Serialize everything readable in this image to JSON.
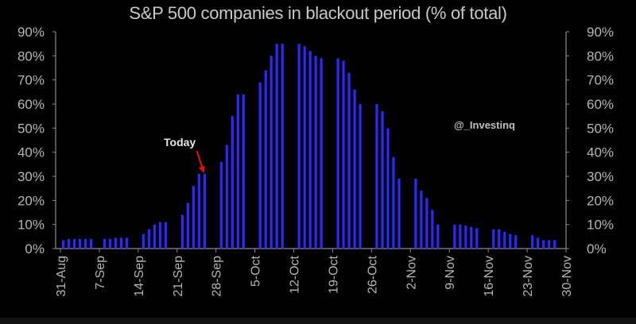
{
  "header": {
    "title": "S&P 500 companies in blackout period (% of total)"
  },
  "annotations": {
    "today_label": "Today",
    "watermark": "@_Investinq"
  },
  "colors": {
    "background": "#000000",
    "bar": "#2a2aff",
    "arrow": "#e01010",
    "axis": "#8a8a8a",
    "text": "#b5b5b5"
  },
  "chart_data": {
    "type": "bar",
    "title": "S&P 500 companies in blackout period (% of total)",
    "xlabel": "",
    "ylabel": "% of total",
    "ylim": [
      0,
      90
    ],
    "y_ticks": [
      "0%",
      "10%",
      "20%",
      "30%",
      "40%",
      "50%",
      "60%",
      "70%",
      "80%",
      "90%"
    ],
    "x_ticks": [
      "31-Aug",
      "7-Sep",
      "14-Sep",
      "21-Sep",
      "28-Sep",
      "5-Oct",
      "12-Oct",
      "19-Oct",
      "26-Oct",
      "2-Nov",
      "9-Nov",
      "16-Nov",
      "23-Nov",
      "30-Nov"
    ],
    "grid": false,
    "dual_y_axis": true,
    "annotation": {
      "text": "Today",
      "points_to_week": "21-Sep",
      "bar_index": 4
    },
    "weeks": [
      {
        "week": "31-Aug",
        "values": [
          3.5,
          4,
          4,
          4,
          4,
          4
        ]
      },
      {
        "week": "7-Sep",
        "values": [
          4,
          4,
          4.5,
          4.5,
          4.5
        ]
      },
      {
        "week": "14-Sep",
        "values": [
          6,
          8,
          10,
          11,
          11
        ]
      },
      {
        "week": "21-Sep",
        "values": [
          14,
          19,
          26,
          31,
          31
        ]
      },
      {
        "week": "28-Sep",
        "values": [
          36,
          43,
          55,
          64,
          64
        ]
      },
      {
        "week": "5-Oct",
        "values": [
          69,
          74,
          80,
          85,
          85
        ]
      },
      {
        "week": "12-Oct",
        "values": [
          85,
          84,
          82,
          80,
          79
        ]
      },
      {
        "week": "19-Oct",
        "values": [
          79,
          78,
          73,
          66,
          60
        ]
      },
      {
        "week": "26-Oct",
        "values": [
          60,
          57,
          50,
          38,
          29
        ]
      },
      {
        "week": "2-Nov",
        "values": [
          29,
          24,
          21,
          16,
          10
        ]
      },
      {
        "week": "9-Nov",
        "values": [
          10,
          10,
          9.5,
          9,
          8.5
        ]
      },
      {
        "week": "16-Nov",
        "values": [
          8,
          8,
          7,
          6,
          5.5
        ]
      },
      {
        "week": "23-Nov",
        "values": [
          5.5,
          4.5,
          3.5,
          3.5,
          3.5
        ]
      }
    ]
  }
}
